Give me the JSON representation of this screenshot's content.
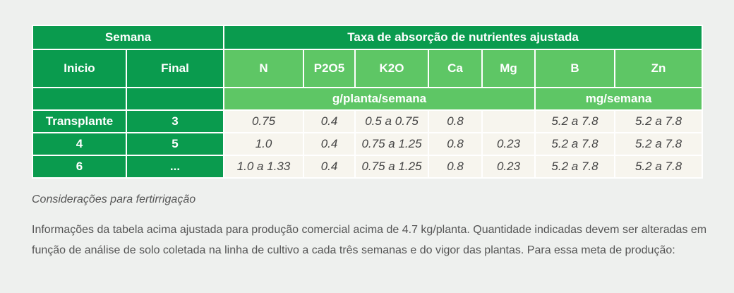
{
  "table": {
    "header": {
      "semana": "Semana",
      "taxa": "Taxa de absorção de nutrientes ajustada",
      "inicio": "Inicio",
      "final": "Final",
      "nutrients": [
        "N",
        "P2O5",
        "K2O",
        "Ca",
        "Mg",
        "B",
        "Zn"
      ],
      "unit_g": "g/planta/semana",
      "unit_mg": "mg/semana"
    },
    "rows": [
      {
        "inicio": "Transplante",
        "final": "3",
        "values": [
          "0.75",
          "0.4",
          "0.5 a 0.75",
          "0.8",
          "",
          "5.2 a 7.8",
          "5.2 a 7.8"
        ]
      },
      {
        "inicio": "4",
        "final": "5",
        "values": [
          "1.0",
          "0.4",
          "0.75 a 1.25",
          "0.8",
          "0.23",
          "5.2 a 7.8",
          "5.2 a 7.8"
        ]
      },
      {
        "inicio": "6",
        "final": "...",
        "values": [
          "1.0 a 1.33",
          "0.4",
          "0.75 a 1.25",
          "0.8",
          "0.23",
          "5.2 a 7.8",
          "5.2 a 7.8"
        ]
      }
    ]
  },
  "caption": "Considerações para fertirrigação",
  "paragraph": "Informações da tabela acima ajustada para produção comercial acima de 4.7 kg/planta. Quantidade indicadas devem ser alteradas em função de análise de solo coletada na linha de cultivo a cada três semanas e do vigor das plantas. Para essa meta de produção:",
  "colors": {
    "dark_green": "#0a9b4e",
    "light_green": "#5ec665",
    "cell_background": "#f7f5ee",
    "page_background": "#eef0ee"
  }
}
